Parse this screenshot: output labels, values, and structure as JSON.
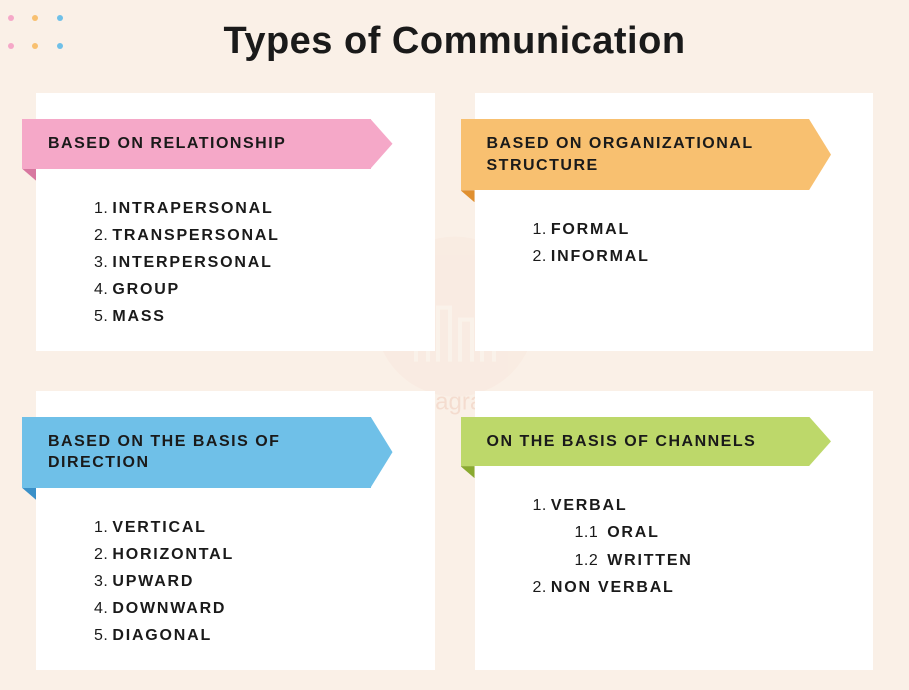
{
  "title": "Types of Communication",
  "watermark": "Samagra CS",
  "background_color": "#faf0e7",
  "card_background": "#ffffff",
  "text_color": "#1a1a1a",
  "dots": {
    "colors": [
      "#f5a8c8",
      "#f8c070",
      "#6fc0e8"
    ]
  },
  "cards": [
    {
      "header": "BASED ON RELATIONSHIP",
      "ribbon_color": "#f5a8c8",
      "ribbon_fold": "#d878a0",
      "items": [
        {
          "num": "1.",
          "text": "INTRAPERSONAL"
        },
        {
          "num": "2.",
          "text": "TRANSPERSONAL"
        },
        {
          "num": "3.",
          "text": "INTERPERSONAL"
        },
        {
          "num": "4.",
          "text": "GROUP"
        },
        {
          "num": "5.",
          "text": "MASS"
        }
      ]
    },
    {
      "header": "BASED ON ORGANIZATIONAL STRUCTURE",
      "ribbon_color": "#f8c070",
      "ribbon_fold": "#e09030",
      "items": [
        {
          "num": "1.",
          "text": "FORMAL"
        },
        {
          "num": "2.",
          "text": "INFORMAL"
        }
      ]
    },
    {
      "header": "BASED ON THE BASIS OF DIRECTION",
      "ribbon_color": "#6fc0e8",
      "ribbon_fold": "#3a90c8",
      "items": [
        {
          "num": "1.",
          "text": "VERTICAL"
        },
        {
          "num": "2.",
          "text": "HORIZONTAL"
        },
        {
          "num": "3.",
          "text": "UPWARD"
        },
        {
          "num": "4.",
          "text": "DOWNWARD"
        },
        {
          "num": "5.",
          "text": "DIAGONAL"
        }
      ]
    },
    {
      "header": "ON THE BASIS OF CHANNELS",
      "ribbon_color": "#bdd86a",
      "ribbon_fold": "#8aaa30",
      "items": [
        {
          "num": "1.",
          "text": "VERBAL",
          "children": [
            {
              "num": "1.1",
              "text": "ORAL"
            },
            {
              "num": "1.2",
              "text": "WRITTEN"
            }
          ]
        },
        {
          "num": "2.",
          "text": "NON VERBAL"
        }
      ]
    }
  ]
}
